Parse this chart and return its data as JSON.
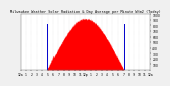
{
  "title": "Milwaukee Weather Solar Radiation & Day Average per Minute W/m2 (Today)",
  "background_color": "#f0f0f0",
  "plot_bg_color": "#ffffff",
  "bar_color": "#ff0000",
  "line_color": "#0000cc",
  "grid_color": "#bbbbbb",
  "x_total_minutes": 1440,
  "sunrise_minute": 290,
  "sunset_minute": 1150,
  "peak_minute": 740,
  "peak_value": 920,
  "ylim": [
    0,
    1000
  ],
  "ylabel_ticks": [
    100,
    200,
    300,
    400,
    500,
    600,
    700,
    800,
    900,
    1000
  ],
  "x_tick_positions": [
    0,
    60,
    120,
    180,
    240,
    300,
    360,
    420,
    480,
    540,
    600,
    660,
    720,
    780,
    840,
    900,
    960,
    1020,
    1080,
    1140,
    1200,
    1260,
    1320,
    1380,
    1440
  ],
  "x_tick_labels": [
    "12a",
    "1",
    "2",
    "3",
    "4",
    "5",
    "6",
    "7",
    "8",
    "9",
    "10",
    "11",
    "12p",
    "1",
    "2",
    "3",
    "4",
    "5",
    "6",
    "7",
    "8",
    "9",
    "10",
    "11",
    "12a"
  ]
}
